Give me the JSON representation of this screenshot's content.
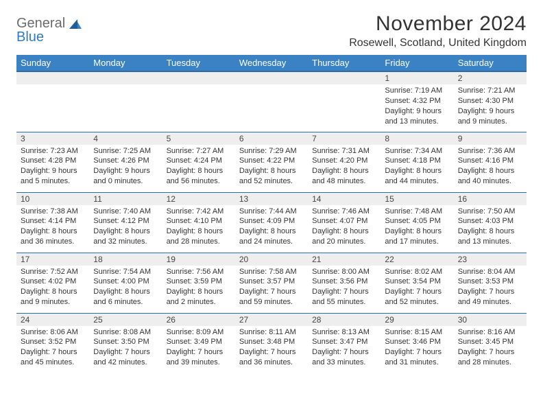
{
  "logo": {
    "word1": "General",
    "word2": "Blue"
  },
  "title": "November 2024",
  "location": "Rosewell, Scotland, United Kingdom",
  "colors": {
    "header_bg": "#3b82c4",
    "header_border": "#2f6aa3",
    "band_bg": "#eeeeee",
    "text": "#333333",
    "logo_grey": "#6b6b6b",
    "logo_blue": "#2f7bbf"
  },
  "weekday_labels": [
    "Sunday",
    "Monday",
    "Tuesday",
    "Wednesday",
    "Thursday",
    "Friday",
    "Saturday"
  ],
  "weeks": [
    [
      null,
      null,
      null,
      null,
      null,
      {
        "n": "1",
        "sr": "Sunrise: 7:19 AM",
        "ss": "Sunset: 4:32 PM",
        "dl1": "Daylight: 9 hours",
        "dl2": "and 13 minutes."
      },
      {
        "n": "2",
        "sr": "Sunrise: 7:21 AM",
        "ss": "Sunset: 4:30 PM",
        "dl1": "Daylight: 9 hours",
        "dl2": "and 9 minutes."
      }
    ],
    [
      {
        "n": "3",
        "sr": "Sunrise: 7:23 AM",
        "ss": "Sunset: 4:28 PM",
        "dl1": "Daylight: 9 hours",
        "dl2": "and 5 minutes."
      },
      {
        "n": "4",
        "sr": "Sunrise: 7:25 AM",
        "ss": "Sunset: 4:26 PM",
        "dl1": "Daylight: 9 hours",
        "dl2": "and 0 minutes."
      },
      {
        "n": "5",
        "sr": "Sunrise: 7:27 AM",
        "ss": "Sunset: 4:24 PM",
        "dl1": "Daylight: 8 hours",
        "dl2": "and 56 minutes."
      },
      {
        "n": "6",
        "sr": "Sunrise: 7:29 AM",
        "ss": "Sunset: 4:22 PM",
        "dl1": "Daylight: 8 hours",
        "dl2": "and 52 minutes."
      },
      {
        "n": "7",
        "sr": "Sunrise: 7:31 AM",
        "ss": "Sunset: 4:20 PM",
        "dl1": "Daylight: 8 hours",
        "dl2": "and 48 minutes."
      },
      {
        "n": "8",
        "sr": "Sunrise: 7:34 AM",
        "ss": "Sunset: 4:18 PM",
        "dl1": "Daylight: 8 hours",
        "dl2": "and 44 minutes."
      },
      {
        "n": "9",
        "sr": "Sunrise: 7:36 AM",
        "ss": "Sunset: 4:16 PM",
        "dl1": "Daylight: 8 hours",
        "dl2": "and 40 minutes."
      }
    ],
    [
      {
        "n": "10",
        "sr": "Sunrise: 7:38 AM",
        "ss": "Sunset: 4:14 PM",
        "dl1": "Daylight: 8 hours",
        "dl2": "and 36 minutes."
      },
      {
        "n": "11",
        "sr": "Sunrise: 7:40 AM",
        "ss": "Sunset: 4:12 PM",
        "dl1": "Daylight: 8 hours",
        "dl2": "and 32 minutes."
      },
      {
        "n": "12",
        "sr": "Sunrise: 7:42 AM",
        "ss": "Sunset: 4:10 PM",
        "dl1": "Daylight: 8 hours",
        "dl2": "and 28 minutes."
      },
      {
        "n": "13",
        "sr": "Sunrise: 7:44 AM",
        "ss": "Sunset: 4:09 PM",
        "dl1": "Daylight: 8 hours",
        "dl2": "and 24 minutes."
      },
      {
        "n": "14",
        "sr": "Sunrise: 7:46 AM",
        "ss": "Sunset: 4:07 PM",
        "dl1": "Daylight: 8 hours",
        "dl2": "and 20 minutes."
      },
      {
        "n": "15",
        "sr": "Sunrise: 7:48 AM",
        "ss": "Sunset: 4:05 PM",
        "dl1": "Daylight: 8 hours",
        "dl2": "and 17 minutes."
      },
      {
        "n": "16",
        "sr": "Sunrise: 7:50 AM",
        "ss": "Sunset: 4:03 PM",
        "dl1": "Daylight: 8 hours",
        "dl2": "and 13 minutes."
      }
    ],
    [
      {
        "n": "17",
        "sr": "Sunrise: 7:52 AM",
        "ss": "Sunset: 4:02 PM",
        "dl1": "Daylight: 8 hours",
        "dl2": "and 9 minutes."
      },
      {
        "n": "18",
        "sr": "Sunrise: 7:54 AM",
        "ss": "Sunset: 4:00 PM",
        "dl1": "Daylight: 8 hours",
        "dl2": "and 6 minutes."
      },
      {
        "n": "19",
        "sr": "Sunrise: 7:56 AM",
        "ss": "Sunset: 3:59 PM",
        "dl1": "Daylight: 8 hours",
        "dl2": "and 2 minutes."
      },
      {
        "n": "20",
        "sr": "Sunrise: 7:58 AM",
        "ss": "Sunset: 3:57 PM",
        "dl1": "Daylight: 7 hours",
        "dl2": "and 59 minutes."
      },
      {
        "n": "21",
        "sr": "Sunrise: 8:00 AM",
        "ss": "Sunset: 3:56 PM",
        "dl1": "Daylight: 7 hours",
        "dl2": "and 55 minutes."
      },
      {
        "n": "22",
        "sr": "Sunrise: 8:02 AM",
        "ss": "Sunset: 3:54 PM",
        "dl1": "Daylight: 7 hours",
        "dl2": "and 52 minutes."
      },
      {
        "n": "23",
        "sr": "Sunrise: 8:04 AM",
        "ss": "Sunset: 3:53 PM",
        "dl1": "Daylight: 7 hours",
        "dl2": "and 49 minutes."
      }
    ],
    [
      {
        "n": "24",
        "sr": "Sunrise: 8:06 AM",
        "ss": "Sunset: 3:52 PM",
        "dl1": "Daylight: 7 hours",
        "dl2": "and 45 minutes."
      },
      {
        "n": "25",
        "sr": "Sunrise: 8:08 AM",
        "ss": "Sunset: 3:50 PM",
        "dl1": "Daylight: 7 hours",
        "dl2": "and 42 minutes."
      },
      {
        "n": "26",
        "sr": "Sunrise: 8:09 AM",
        "ss": "Sunset: 3:49 PM",
        "dl1": "Daylight: 7 hours",
        "dl2": "and 39 minutes."
      },
      {
        "n": "27",
        "sr": "Sunrise: 8:11 AM",
        "ss": "Sunset: 3:48 PM",
        "dl1": "Daylight: 7 hours",
        "dl2": "and 36 minutes."
      },
      {
        "n": "28",
        "sr": "Sunrise: 8:13 AM",
        "ss": "Sunset: 3:47 PM",
        "dl1": "Daylight: 7 hours",
        "dl2": "and 33 minutes."
      },
      {
        "n": "29",
        "sr": "Sunrise: 8:15 AM",
        "ss": "Sunset: 3:46 PM",
        "dl1": "Daylight: 7 hours",
        "dl2": "and 31 minutes."
      },
      {
        "n": "30",
        "sr": "Sunrise: 8:16 AM",
        "ss": "Sunset: 3:45 PM",
        "dl1": "Daylight: 7 hours",
        "dl2": "and 28 minutes."
      }
    ]
  ]
}
